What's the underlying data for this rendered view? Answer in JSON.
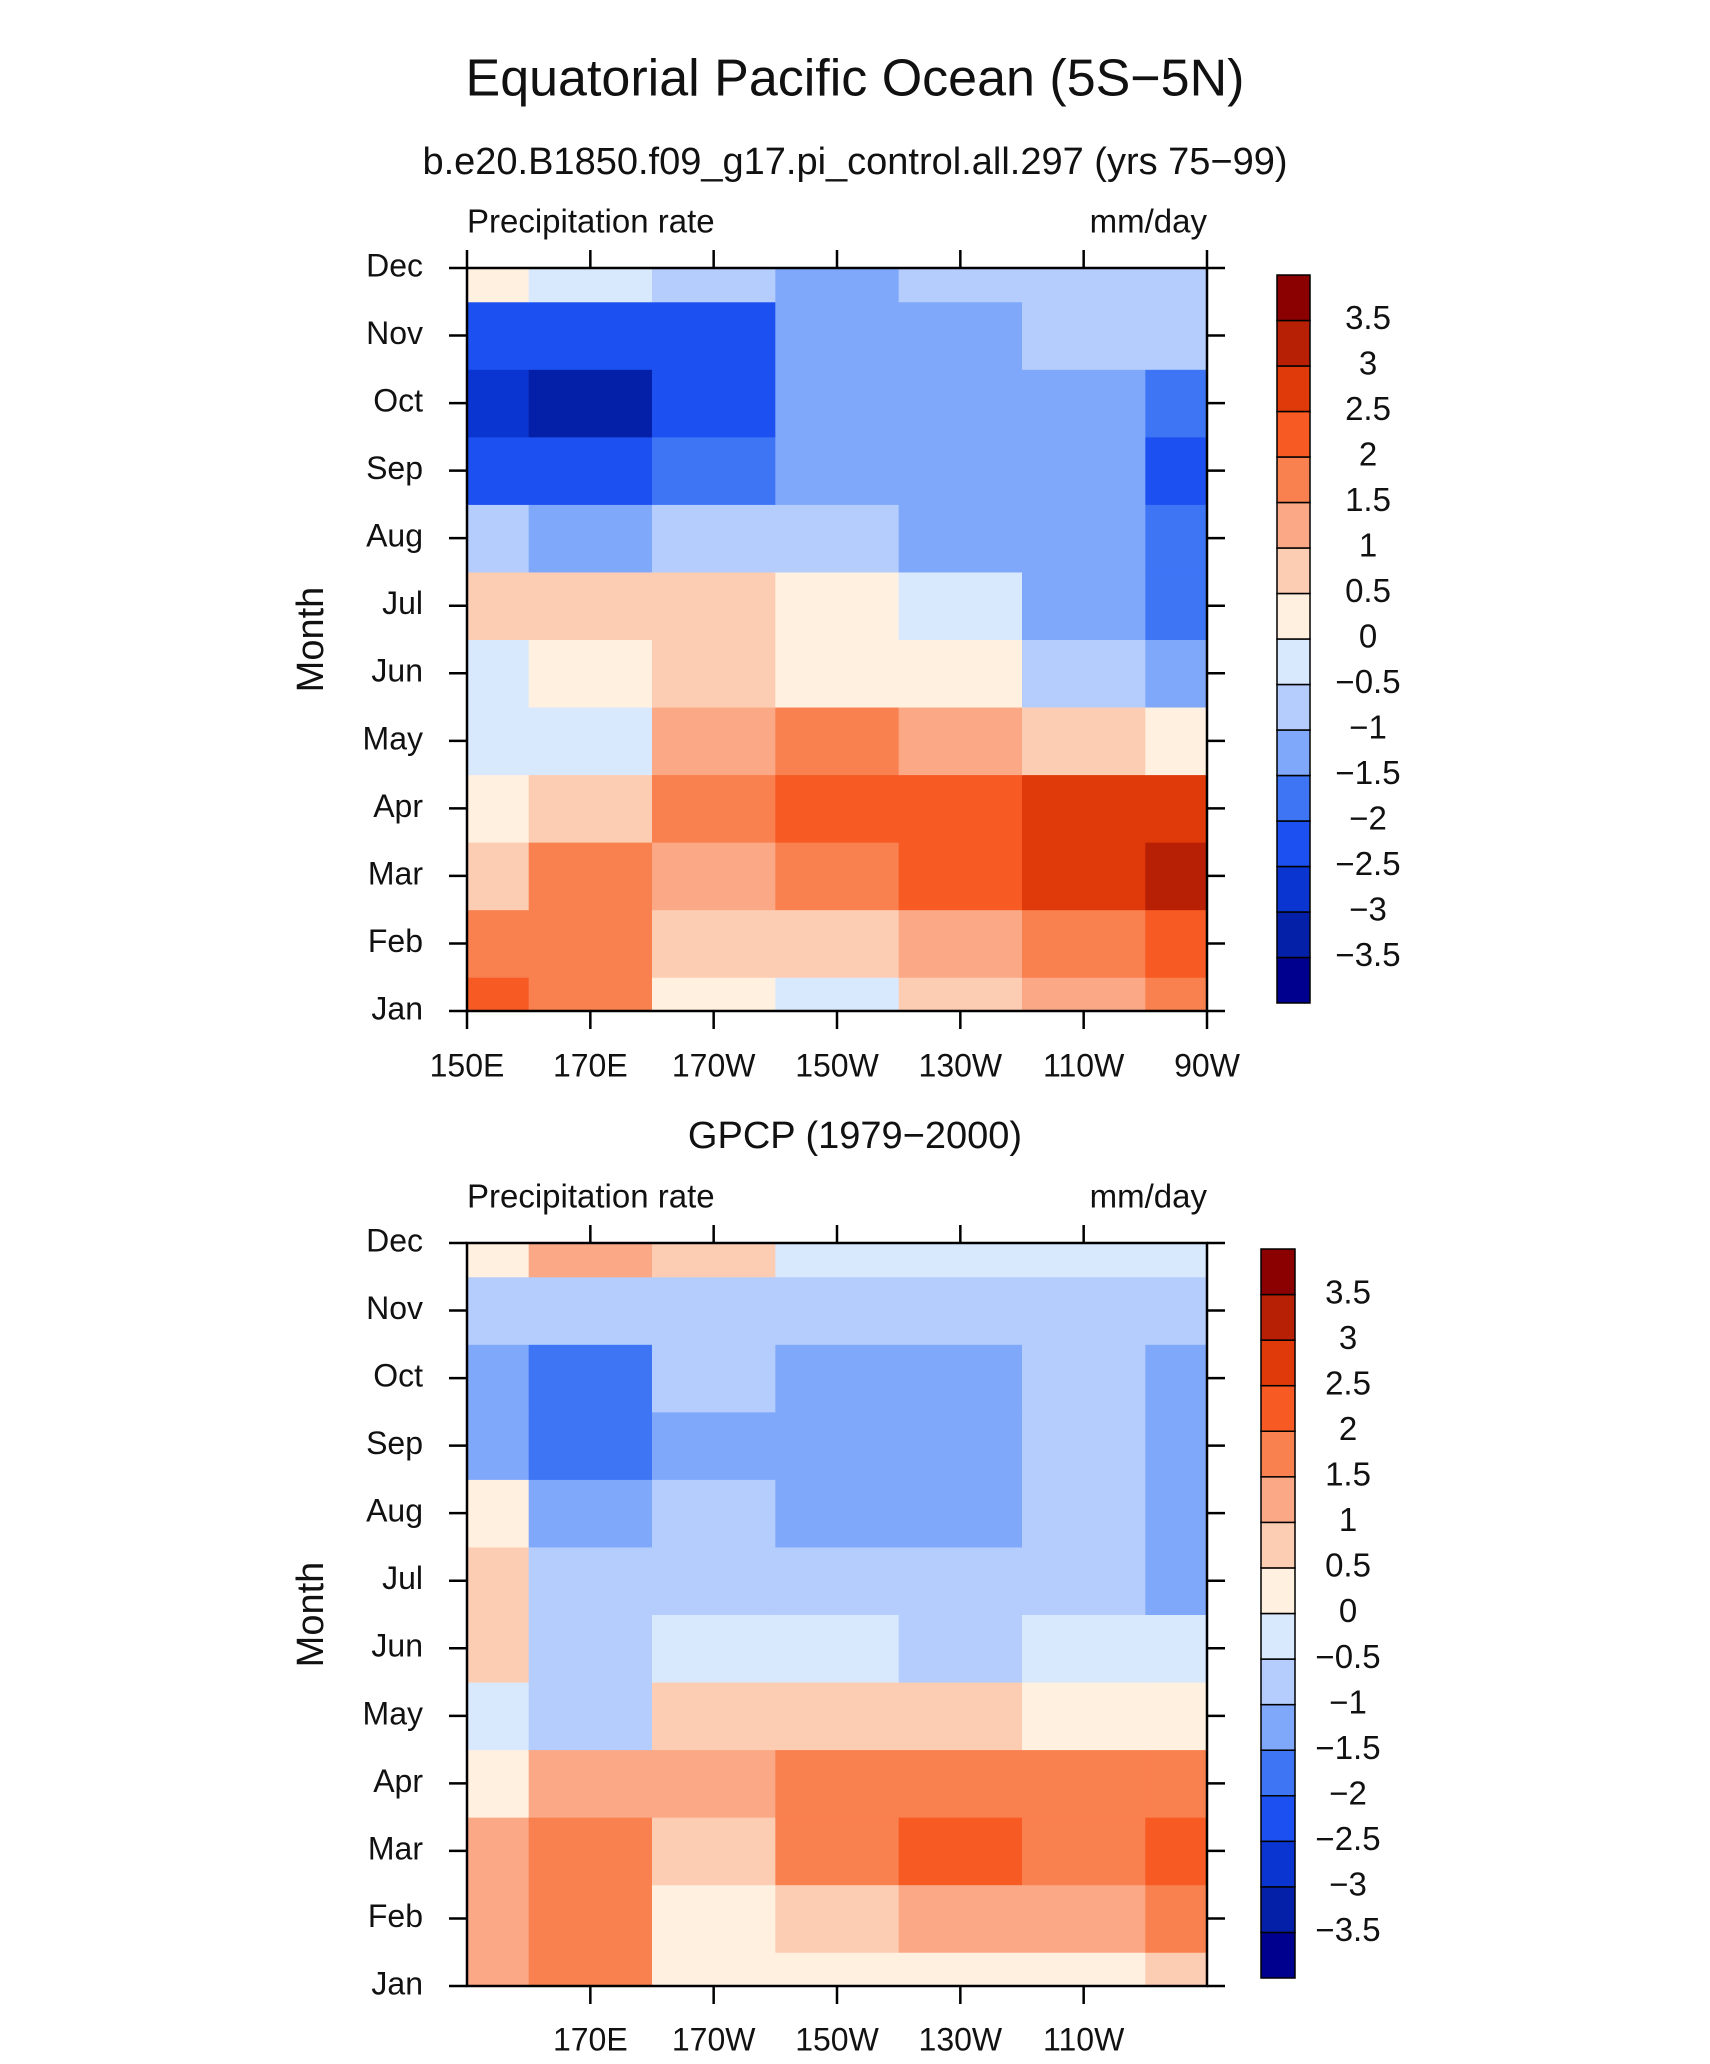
{
  "title": "Equatorial Pacific Ocean (5S−5N)",
  "chart_data": [
    {
      "type": "contour",
      "title": "b.e20.B1850.f09_g17.pi_control.all.297 (yrs 75−99)",
      "left_label": "Precipitation rate",
      "right_label": "mm/day",
      "ylabel": "Month",
      "x": [
        150,
        170,
        190,
        210,
        230,
        250,
        270
      ],
      "categories": [
        "Jan",
        "Feb",
        "Mar",
        "Apr",
        "May",
        "Jun",
        "Jul",
        "Aug",
        "Sep",
        "Oct",
        "Nov",
        "Dec"
      ],
      "values": [
        [
          2.2,
          1.7,
          0.3,
          -0.3,
          0.5,
          1.2,
          1.8
        ],
        [
          1.8,
          1.7,
          0.6,
          0.8,
          1.2,
          1.8,
          2.3
        ],
        [
          0.6,
          1.8,
          1.3,
          1.8,
          2.2,
          2.8,
          3.3
        ],
        [
          0.4,
          0.6,
          1.7,
          2.3,
          2.4,
          2.5,
          2.6
        ],
        [
          -0.3,
          -0.2,
          1.2,
          1.5,
          1.2,
          0.8,
          0.4
        ],
        [
          -0.3,
          0.4,
          0.8,
          0.4,
          0.0,
          -0.6,
          -1.2
        ],
        [
          0.8,
          0.6,
          0.9,
          0.2,
          -0.3,
          -1.2,
          -1.6
        ],
        [
          -0.7,
          -1.2,
          -0.8,
          -0.8,
          -1.1,
          -1.3,
          -1.6
        ],
        [
          -2.3,
          -2.5,
          -1.7,
          -1.3,
          -1.3,
          -1.4,
          -2.1
        ],
        [
          -2.8,
          -3.2,
          -2.3,
          -1.3,
          -1.3,
          -1.3,
          -1.8
        ],
        [
          -2.2,
          -2.5,
          -2.1,
          -1.3,
          -1.1,
          -1.0,
          -1.0
        ],
        [
          0.3,
          -0.4,
          -0.9,
          -1.1,
          -0.9,
          -0.7,
          -0.7
        ]
      ],
      "xlim": [
        150,
        270
      ],
      "xticks": [
        {
          "value": 150,
          "label": "150E"
        },
        {
          "value": 170,
          "label": "170E"
        },
        {
          "value": 190,
          "label": "170W"
        },
        {
          "value": 210,
          "label": "150W"
        },
        {
          "value": 230,
          "label": "130W"
        },
        {
          "value": 250,
          "label": "110W"
        },
        {
          "value": 270,
          "label": "90W"
        }
      ],
      "levels": [
        {
          "value": -3.5,
          "label": "−3.5"
        },
        {
          "value": -3,
          "label": "−3"
        },
        {
          "value": -2.5,
          "label": "−2.5"
        },
        {
          "value": -2,
          "label": "−2"
        },
        {
          "value": -1.5,
          "label": "−1.5"
        },
        {
          "value": -1,
          "label": "−1"
        },
        {
          "value": -0.5,
          "label": "−0.5"
        },
        0,
        0.5,
        1,
        1.5,
        2,
        2.5,
        3,
        3.5
      ],
      "colors": [
        "#00008f",
        "#0520a8",
        "#0a35d0",
        "#1d50f0",
        "#3e75f5",
        "#80a8fa",
        "#b4cdfc",
        "#d8e8fd",
        "#fff0e0",
        "#fdcdb3",
        "#fba886",
        "#f9804f",
        "#f85a24",
        "#e03a0a",
        "#b82005",
        "#8b0000"
      ]
    },
    {
      "type": "contour",
      "title": "GPCP (1979−2000)",
      "left_label": "Precipitation rate",
      "right_label": "mm/day",
      "ylabel": "Month",
      "x": [
        150,
        170,
        190,
        210,
        230,
        250,
        270
      ],
      "categories": [
        "Jan",
        "Feb",
        "Mar",
        "Apr",
        "May",
        "Jun",
        "Jul",
        "Aug",
        "Sep",
        "Oct",
        "Nov",
        "Dec"
      ],
      "values": [
        [
          1.2,
          1.5,
          0.2,
          0.3,
          0.3,
          0.2,
          0.5
        ],
        [
          1.3,
          1.5,
          0.4,
          0.8,
          1.0,
          1.3,
          1.5
        ],
        [
          1.0,
          1.6,
          0.6,
          1.5,
          2.0,
          1.7,
          2.0
        ],
        [
          0.3,
          1.0,
          1.0,
          1.5,
          1.7,
          1.7,
          1.7
        ],
        [
          -0.3,
          -0.8,
          0.6,
          0.8,
          0.5,
          0.3,
          0.1
        ],
        [
          0.7,
          -0.8,
          -0.1,
          -0.3,
          -0.6,
          -0.5,
          -0.3
        ],
        [
          0.6,
          -0.8,
          -0.7,
          -0.7,
          -0.8,
          -1.0,
          -1.2
        ],
        [
          0.4,
          -1.2,
          -1.0,
          -1.3,
          -1.3,
          -0.9,
          -1.2
        ],
        [
          -1.3,
          -1.8,
          -1.3,
          -1.4,
          -1.4,
          -0.9,
          -1.2
        ],
        [
          -1.3,
          -1.8,
          -1.0,
          -1.2,
          -1.1,
          -0.8,
          -1.3
        ],
        [
          -0.8,
          -0.9,
          -0.8,
          -0.6,
          -0.6,
          -0.7,
          -0.8
        ],
        [
          0.2,
          1.0,
          0.5,
          -0.2,
          -0.4,
          -0.5,
          -0.4
        ]
      ],
      "xlim": [
        150,
        270
      ],
      "xticks": [
        {
          "value": 170,
          "label": "170E"
        },
        {
          "value": 190,
          "label": "170W"
        },
        {
          "value": 210,
          "label": "150W"
        },
        {
          "value": 230,
          "label": "130W"
        },
        {
          "value": 250,
          "label": "110W"
        }
      ],
      "levels": [
        {
          "value": -3.5,
          "label": "−3.5"
        },
        {
          "value": -3,
          "label": "−3"
        },
        {
          "value": -2.5,
          "label": "−2.5"
        },
        {
          "value": -2,
          "label": "−2"
        },
        {
          "value": -1.5,
          "label": "−1.5"
        },
        {
          "value": -1,
          "label": "−1"
        },
        {
          "value": -0.5,
          "label": "−0.5"
        },
        0,
        0.5,
        1,
        1.5,
        2,
        2.5,
        3,
        3.5
      ],
      "colors": [
        "#00008f",
        "#0520a8",
        "#0a35d0",
        "#1d50f0",
        "#3e75f5",
        "#80a8fa",
        "#b4cdfc",
        "#d8e8fd",
        "#fff0e0",
        "#fdcdb3",
        "#fba886",
        "#f9804f",
        "#f85a24",
        "#e03a0a",
        "#b82005",
        "#8b0000"
      ]
    }
  ]
}
